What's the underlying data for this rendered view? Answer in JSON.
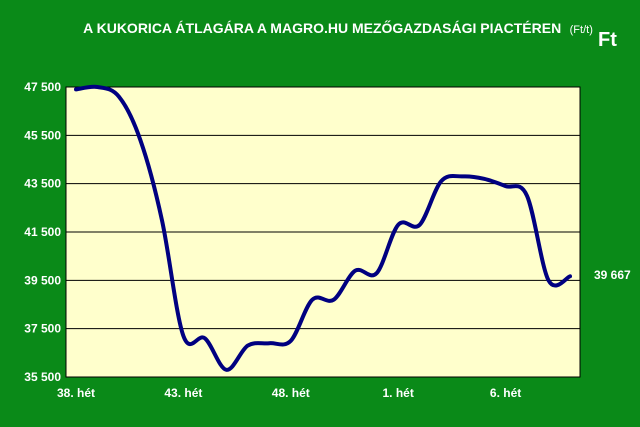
{
  "chart_data": {
    "type": "line",
    "title": "A KUKORICA ÁTLAGÁRA A MAGRO.HU MEZŐGAZDASÁGI PIACTÉREN",
    "title_unit": "(Ft/t)",
    "unit_label": "Ft",
    "ylim": [
      35500,
      47500
    ],
    "y_ticks": [
      "35 500",
      "37 500",
      "39 500",
      "41 500",
      "43 500",
      "45 500",
      "47 500"
    ],
    "y_tick_values": [
      35500,
      37500,
      39500,
      41500,
      43500,
      45500,
      47500
    ],
    "x_tick_labels": [
      "38. hét",
      "43. hét",
      "48. hét",
      "1. hét",
      "6. hét"
    ],
    "x_tick_index": [
      0,
      5,
      10,
      15,
      20
    ],
    "series": [
      {
        "values": [
          47400,
          47500,
          47100,
          45300,
          42000,
          37200,
          37100,
          35800,
          36800,
          36900,
          37000,
          38700,
          38700,
          39900,
          39800,
          41800,
          41800,
          43600,
          43800,
          43700,
          43400,
          43000,
          39500,
          39667
        ]
      }
    ],
    "end_label": "39 667",
    "colors": {
      "background": "#0a8a18",
      "plot_area": "#ffffcc",
      "line": "#000080",
      "grid": "#000000"
    }
  }
}
